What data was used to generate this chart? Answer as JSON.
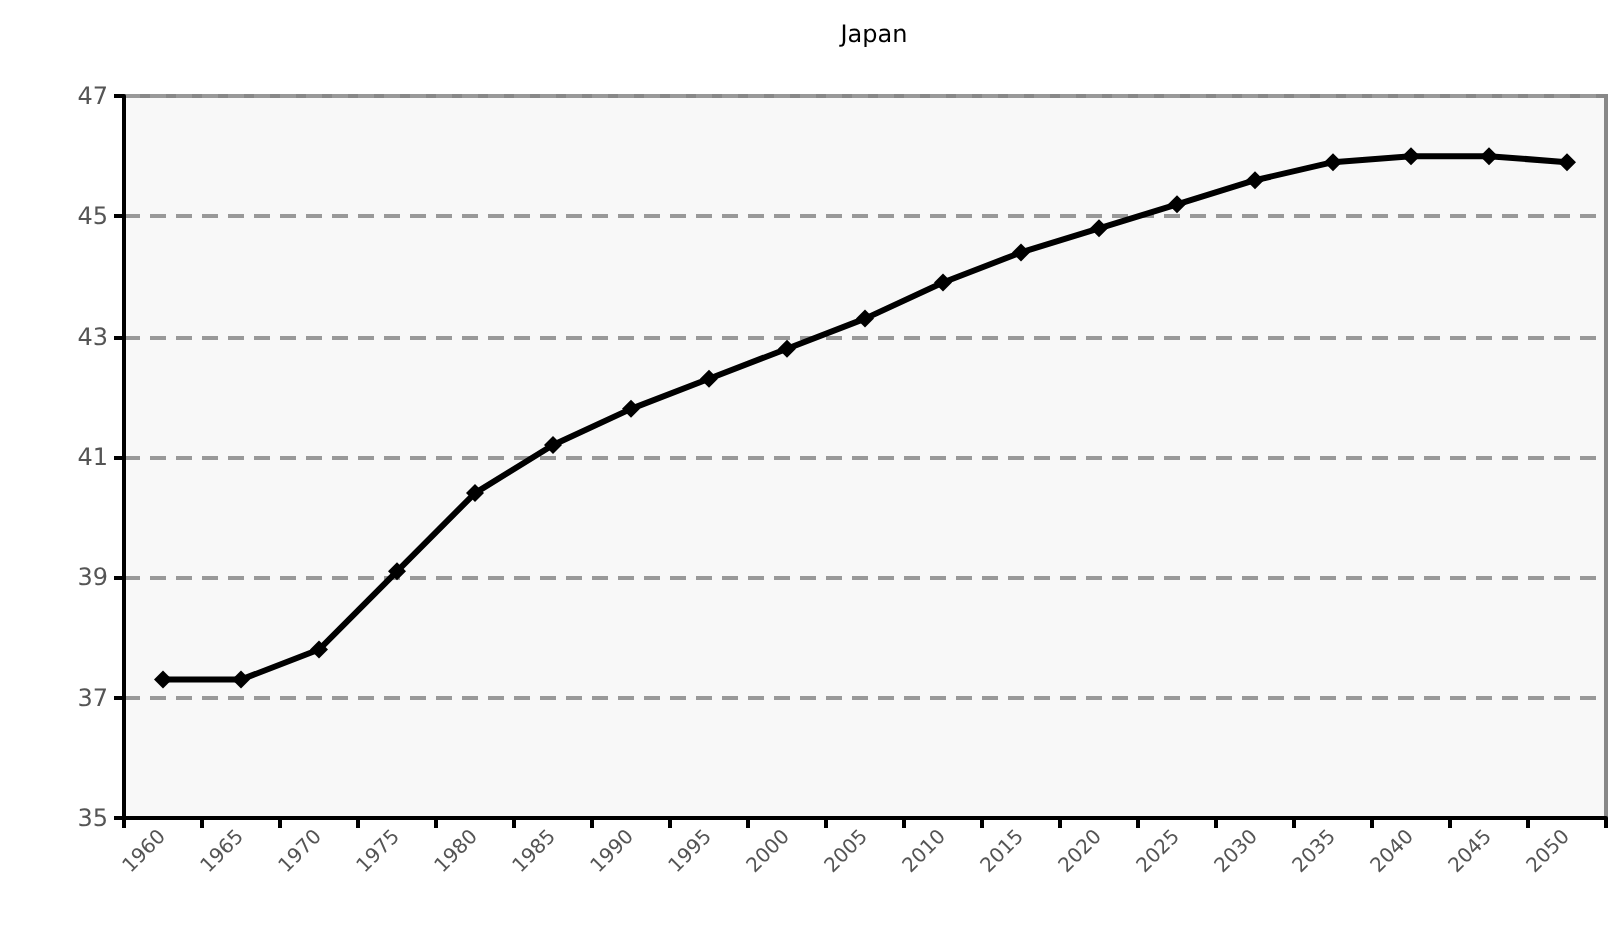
{
  "chart_data": {
    "type": "line",
    "title": "Japan",
    "categories": [
      "1960",
      "1965",
      "1970",
      "1975",
      "1980",
      "1985",
      "1990",
      "1995",
      "2000",
      "2005",
      "2010",
      "2015",
      "2020",
      "2025",
      "2030",
      "2035",
      "2040",
      "2045",
      "2050"
    ],
    "series": [
      {
        "color": "#000000",
        "values": [
          37.3,
          37.3,
          37.8,
          39.1,
          40.4,
          41.2,
          41.8,
          42.3,
          42.8,
          43.3,
          43.9,
          44.4,
          44.8,
          45.2,
          45.6,
          45.9,
          46.0,
          46.0,
          45.9
        ]
      }
    ],
    "ylim": [
      35,
      47
    ],
    "yticks": [
      35,
      37,
      39,
      41,
      43,
      45,
      47
    ],
    "grid": "y",
    "marker": "diamond",
    "line_style": "solid"
  }
}
